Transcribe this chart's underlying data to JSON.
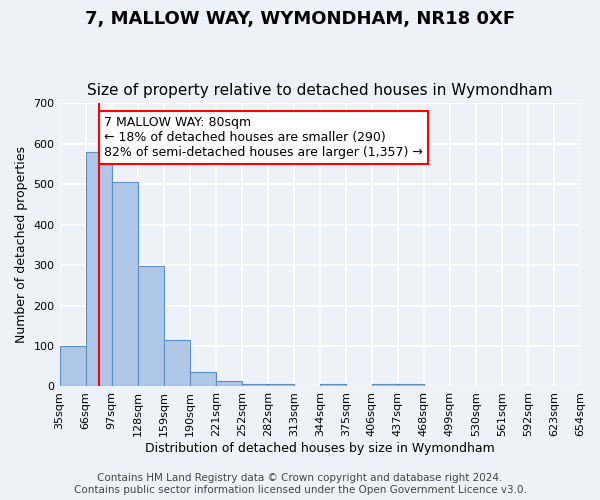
{
  "title": "7, MALLOW WAY, WYMONDHAM, NR18 0XF",
  "subtitle": "Size of property relative to detached houses in Wymondham",
  "xlabel": "Distribution of detached houses by size in Wymondham",
  "ylabel": "Number of detached properties",
  "footer_lines": [
    "Contains HM Land Registry data © Crown copyright and database right 2024.",
    "Contains public sector information licensed under the Open Government Licence v3.0."
  ],
  "bin_edges": [
    "35sqm",
    "66sqm",
    "97sqm",
    "128sqm",
    "159sqm",
    "190sqm",
    "221sqm",
    "252sqm",
    "282sqm",
    "313sqm",
    "344sqm",
    "375sqm",
    "406sqm",
    "437sqm",
    "468sqm",
    "499sqm",
    "530sqm",
    "561sqm",
    "592sqm",
    "623sqm",
    "654sqm"
  ],
  "bar_values": [
    100,
    580,
    505,
    298,
    115,
    35,
    14,
    7,
    7,
    0,
    7,
    0,
    7,
    7,
    0,
    0,
    0,
    0,
    0,
    0
  ],
  "bar_color": "#aec6e8",
  "bar_edge_color": "#5a8fc0",
  "red_line_x": 1.5,
  "annotation_text": "7 MALLOW WAY: 80sqm\n← 18% of detached houses are smaller (290)\n82% of semi-detached houses are larger (1,357) →",
  "annotation_box_color": "white",
  "annotation_box_edge": "red",
  "ylim": [
    0,
    700
  ],
  "yticks": [
    0,
    100,
    200,
    300,
    400,
    500,
    600,
    700
  ],
  "bg_color": "#eef2f8",
  "grid_color": "white",
  "title_fontsize": 13,
  "subtitle_fontsize": 11,
  "axis_label_fontsize": 9,
  "tick_fontsize": 8,
  "footer_fontsize": 7.5
}
